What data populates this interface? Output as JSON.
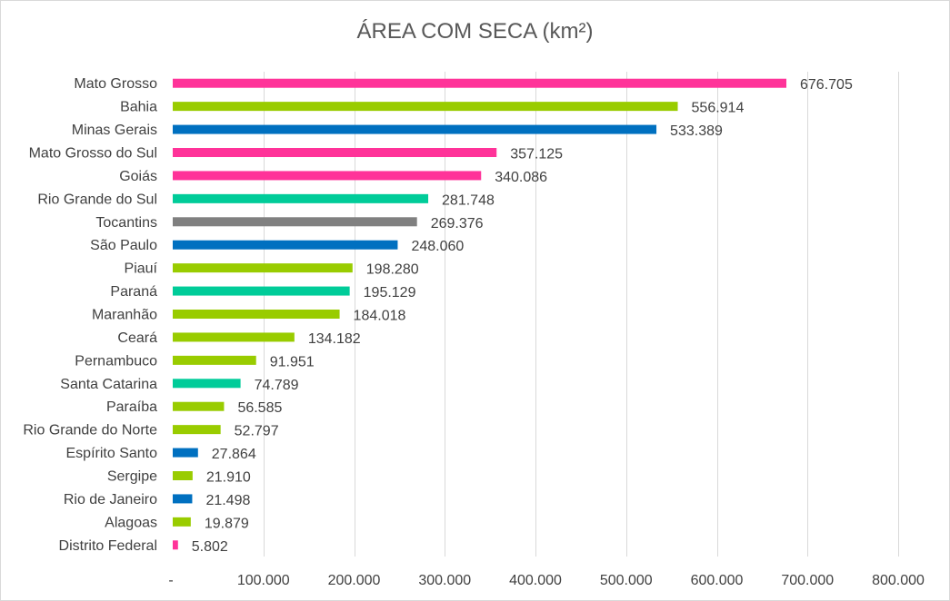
{
  "chart_data": {
    "type": "bar",
    "orientation": "horizontal",
    "title": "ÁREA COM SECA (km²)",
    "xlabel": "",
    "ylabel": "",
    "xlim": [
      0,
      800000
    ],
    "x_ticks": [
      0,
      100000,
      200000,
      300000,
      400000,
      500000,
      600000,
      700000,
      800000
    ],
    "x_tick_labels": [
      "-",
      "100.000",
      "200.000",
      "300.000",
      "400.000",
      "500.000",
      "600.000",
      "700.000",
      "800.000"
    ],
    "grid": "vertical",
    "legend": "none",
    "categories": [
      "Mato Grosso",
      "Bahia",
      "Minas Gerais",
      "Mato Grosso do Sul",
      "Goiás",
      "Rio Grande do Sul",
      "Tocantins",
      "São Paulo",
      "Piauí",
      "Paraná",
      "Maranhão",
      "Ceará",
      "Pernambuco",
      "Santa Catarina",
      "Paraíba",
      "Rio Grande do Norte",
      "Espírito Santo",
      "Sergipe",
      "Rio de Janeiro",
      "Alagoas",
      "Distrito Federal"
    ],
    "values": [
      676705,
      556914,
      533389,
      357125,
      340086,
      281748,
      269376,
      248060,
      198280,
      195129,
      184018,
      134182,
      91951,
      74789,
      56585,
      52797,
      27864,
      21910,
      21498,
      19879,
      5802
    ],
    "value_labels": [
      "676.705",
      "556.914",
      "533.389",
      "357.125",
      "340.086",
      "281.748",
      "269.376",
      "248.060",
      "198.280",
      "195.129",
      "184.018",
      "134.182",
      "91.951",
      "74.789",
      "56.585",
      "52.797",
      "27.864",
      "21.910",
      "21.498",
      "19.879",
      "5.802"
    ],
    "bar_colors": [
      "#ff3399",
      "#99cc00",
      "#0070c0",
      "#ff3399",
      "#ff3399",
      "#00cc99",
      "#808080",
      "#0070c0",
      "#99cc00",
      "#00cc99",
      "#99cc00",
      "#99cc00",
      "#99cc00",
      "#00cc99",
      "#99cc00",
      "#99cc00",
      "#0070c0",
      "#99cc00",
      "#0070c0",
      "#99cc00",
      "#ff3399"
    ],
    "grid_color": "#d9d9d9"
  }
}
